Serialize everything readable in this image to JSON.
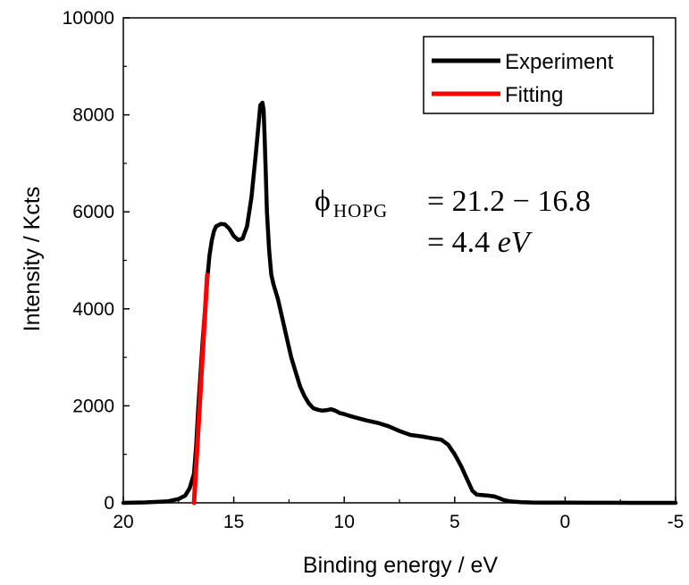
{
  "chart_data": {
    "type": "line",
    "title": "",
    "xlabel": "Binding energy / eV",
    "ylabel": "Intensity / Kcts",
    "xlim": [
      20,
      -5
    ],
    "ylim": [
      0,
      10000
    ],
    "x_reversed": true,
    "x_ticks": [
      20,
      15,
      10,
      5,
      0,
      -5
    ],
    "x_tick_labels": [
      "20",
      "15",
      "10",
      "5",
      "0",
      "-5"
    ],
    "y_ticks": [
      0,
      2000,
      4000,
      6000,
      8000,
      10000
    ],
    "y_tick_labels": [
      "0",
      "2000",
      "4000",
      "6000",
      "8000",
      "10000"
    ],
    "grid": false,
    "legend_position": "top-right",
    "series": [
      {
        "name": "Experiment",
        "color": "#000000",
        "x": [
          20,
          19,
          18,
          17.5,
          17.2,
          17.0,
          16.8,
          16.7,
          16.6,
          16.5,
          16.4,
          16.3,
          16.2,
          16.1,
          16.0,
          15.9,
          15.8,
          15.6,
          15.4,
          15.2,
          15.0,
          14.8,
          14.6,
          14.4,
          14.2,
          14.0,
          13.9,
          13.8,
          13.7,
          13.65,
          13.6,
          13.55,
          13.5,
          13.4,
          13.3,
          13.2,
          13.0,
          12.8,
          12.6,
          12.4,
          12.2,
          12.0,
          11.8,
          11.6,
          11.4,
          11.2,
          11.0,
          10.8,
          10.6,
          10.4,
          10.2,
          10.0,
          9.8,
          9.5,
          9.0,
          8.5,
          8.0,
          7.5,
          7.0,
          6.5,
          6.0,
          5.6,
          5.3,
          5.0,
          4.7,
          4.4,
          4.2,
          4.0,
          3.8,
          3.5,
          3.2,
          3.0,
          2.8,
          2.5,
          2.0,
          1.5,
          1.0,
          0,
          -1,
          -2,
          -3,
          -4,
          -5
        ],
        "y": [
          0,
          10,
          30,
          80,
          150,
          300,
          600,
          1200,
          2000,
          2700,
          3400,
          4000,
          4600,
          5100,
          5400,
          5600,
          5700,
          5750,
          5740,
          5650,
          5500,
          5420,
          5450,
          5700,
          6300,
          7200,
          7700,
          8200,
          8250,
          8100,
          7500,
          6800,
          6000,
          5200,
          4700,
          4500,
          4200,
          3800,
          3400,
          3000,
          2700,
          2400,
          2200,
          2050,
          1950,
          1920,
          1900,
          1910,
          1930,
          1900,
          1850,
          1830,
          1800,
          1760,
          1700,
          1650,
          1580,
          1480,
          1400,
          1370,
          1330,
          1300,
          1200,
          1000,
          750,
          450,
          250,
          170,
          160,
          150,
          130,
          100,
          60,
          30,
          15,
          8,
          5,
          3,
          2,
          1,
          0,
          0,
          0
        ]
      },
      {
        "name": "Fitting",
        "color": "#ff0000",
        "x": [
          16.8,
          16.2
        ],
        "y": [
          0,
          4700
        ]
      }
    ],
    "annotations": [
      {
        "line1_symbol": "ϕ",
        "line1_sub": "HOPG",
        "line1_rest": "= 21.2 − 16.8",
        "line2_prefix": "= 4.4 ",
        "line2_unit": "eV"
      }
    ]
  }
}
